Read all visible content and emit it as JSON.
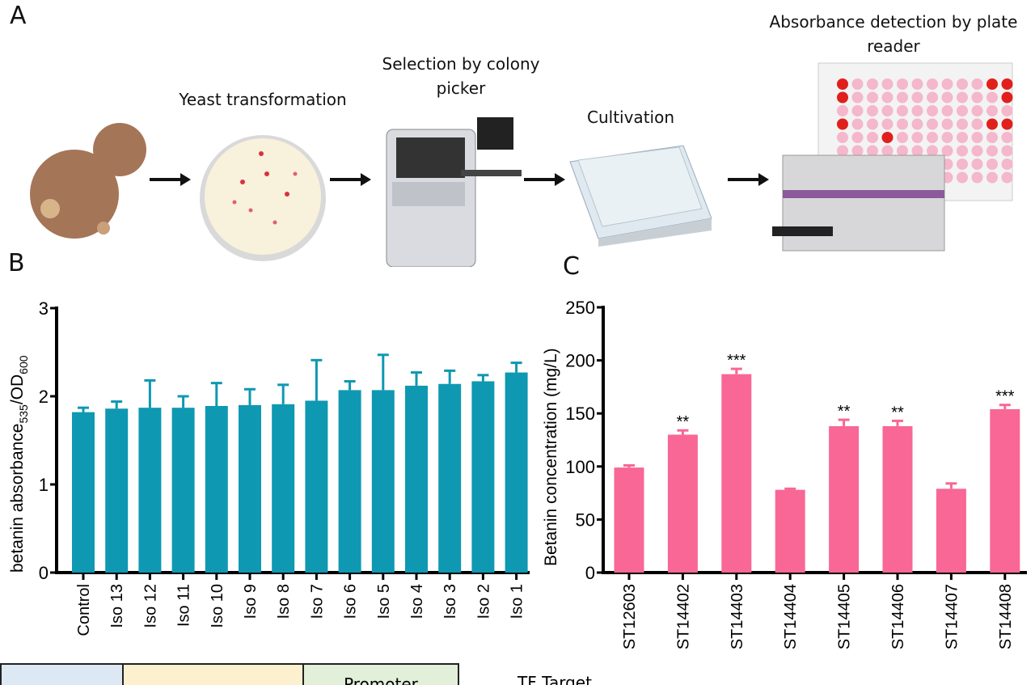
{
  "panels": {
    "a": "A",
    "b": "B",
    "c": "C"
  },
  "workflow": {
    "steps": [
      {
        "label": "Yeast transformation"
      },
      {
        "label": "Selection by colony picker"
      },
      {
        "label": "Cultivation"
      },
      {
        "label": "Absorbance detection by plate reader"
      }
    ]
  },
  "bottom_table": {
    "cells": [
      "",
      "",
      "Promoter"
    ],
    "side_label": "TF Target"
  },
  "chart_data": [
    {
      "type": "bar",
      "panel": "B",
      "ylabel": "betanin absorbance535/OD600",
      "ylabel_parts": {
        "main": "betanin absorbance",
        "sub1": "535",
        "mid": "/OD",
        "sub2": "600"
      },
      "ylim": [
        0,
        3
      ],
      "yticks": [
        0,
        1,
        2,
        3
      ],
      "categories": [
        "Control",
        "Iso 13",
        "Iso 12",
        "Iso 11",
        "Iso 10",
        "Iso 9",
        "Iso 8",
        "Iso 7",
        "Iso 6",
        "Iso 5",
        "Iso 4",
        "Iso 3",
        "Iso 2",
        "Iso 1"
      ],
      "values": [
        1.82,
        1.86,
        1.87,
        1.87,
        1.89,
        1.9,
        1.91,
        1.95,
        2.07,
        2.07,
        2.12,
        2.14,
        2.17,
        2.27
      ],
      "error_upper": [
        1.87,
        1.94,
        2.18,
        2.0,
        2.15,
        2.08,
        2.13,
        2.41,
        2.17,
        2.47,
        2.27,
        2.29,
        2.24,
        2.38
      ],
      "color": "#0f98b2",
      "grid": false
    },
    {
      "type": "bar",
      "panel": "C",
      "ylabel": "Betanin concentration (mg/L)",
      "ylim": [
        0,
        250
      ],
      "yticks": [
        0,
        50,
        100,
        150,
        200,
        250
      ],
      "categories": [
        "ST12603",
        "ST14402",
        "ST14403",
        "ST14404",
        "ST14405",
        "ST14406",
        "ST14407",
        "ST14408"
      ],
      "values": [
        99,
        130,
        187,
        78,
        138,
        138,
        79,
        154
      ],
      "error_upper": [
        101,
        134,
        192,
        79,
        144,
        143,
        84,
        158
      ],
      "significance": [
        "",
        "**",
        "***",
        "",
        "**",
        "**",
        "",
        "***"
      ],
      "color": "#f86795",
      "grid": false
    }
  ]
}
